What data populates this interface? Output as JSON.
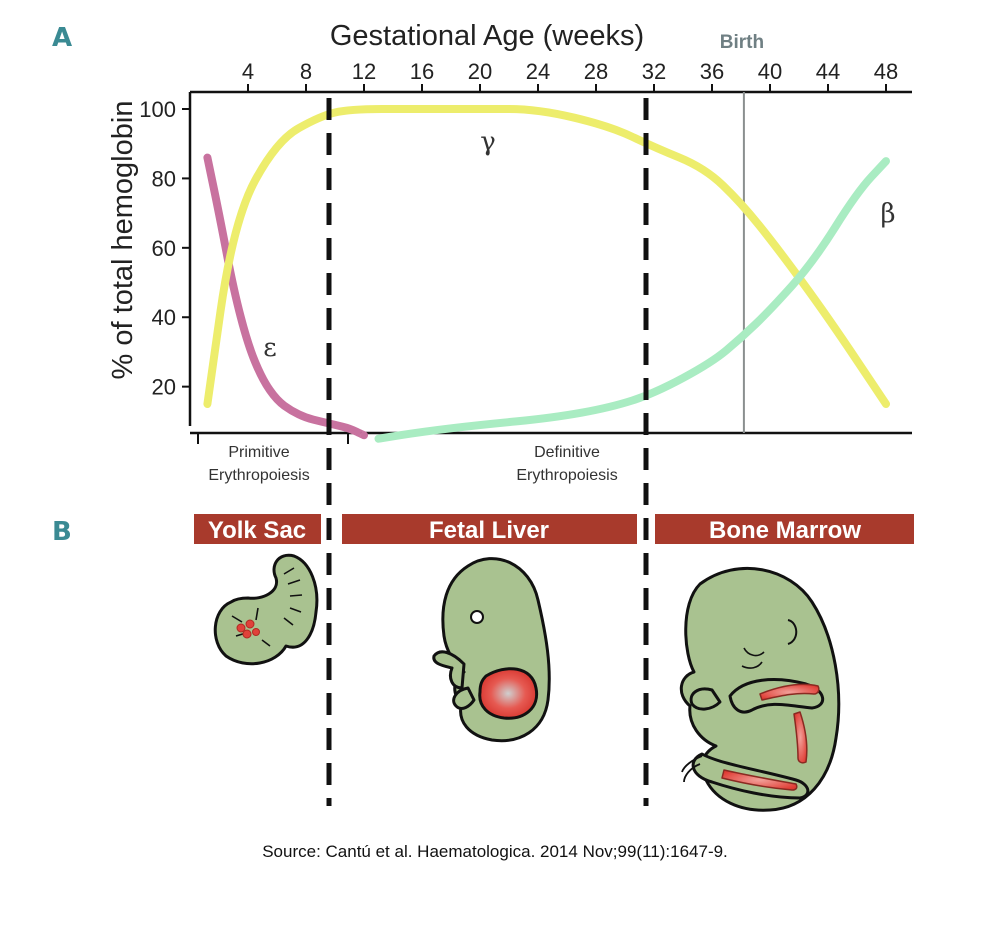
{
  "panels": {
    "a": "A",
    "b": "B"
  },
  "birth_label": "Birth",
  "brackets": {
    "primitive": [
      "Primitive",
      "Erythropoiesis"
    ],
    "definitive": [
      "Definitive",
      "Erythropoiesis"
    ]
  },
  "sites": [
    "Yolk Sac",
    "Fetal Liver",
    "Bone Marrow"
  ],
  "source": "Source: Cantú et al. Haematologica. 2014 Nov;99(11):1647-9.",
  "colors": {
    "epsilon": "#c8729f",
    "gamma": "#eded6c",
    "beta": "#a9ecc2",
    "banner": "#a83a2c",
    "embryo": "#a9c290",
    "marrow": "#e0413a",
    "birth_line": "#8a8f8f"
  },
  "chart_data": {
    "type": "line",
    "xlabel": "Gestational Age (weeks)",
    "ylabel": "% of total hemoglobin",
    "xticks": [
      4,
      8,
      12,
      16,
      20,
      24,
      28,
      32,
      36,
      40,
      44,
      48
    ],
    "yticks": [
      20,
      40,
      60,
      80,
      100
    ],
    "xlim": [
      0,
      49
    ],
    "ylim": [
      5,
      105
    ],
    "birth_week": 38.2,
    "stage_boundaries_weeks": [
      9.6,
      31.2
    ],
    "series": [
      {
        "name": "ε",
        "color": "#c8729f",
        "x": [
          1.2,
          2,
          3,
          4,
          5,
          6,
          7,
          8,
          9,
          10,
          11,
          12
        ],
        "y": [
          86,
          70,
          48,
          32,
          22,
          16,
          13,
          11,
          10,
          9,
          8,
          6
        ]
      },
      {
        "name": "γ",
        "color": "#eded6c",
        "x": [
          1.2,
          3,
          6,
          9,
          11,
          16,
          20,
          24,
          29,
          32,
          35.5,
          38,
          40.5,
          44,
          48
        ],
        "y": [
          15,
          68,
          91,
          98,
          100,
          100,
          100,
          100,
          95,
          89,
          83,
          73,
          60,
          40,
          15
        ]
      },
      {
        "name": "β",
        "color": "#a9ecc2",
        "x": [
          13,
          16,
          20,
          25,
          29,
          32,
          36,
          38,
          40,
          43,
          46,
          48
        ],
        "y": [
          5,
          7,
          9,
          11,
          14,
          18,
          27,
          34,
          42,
          56,
          76,
          85
        ]
      }
    ]
  }
}
